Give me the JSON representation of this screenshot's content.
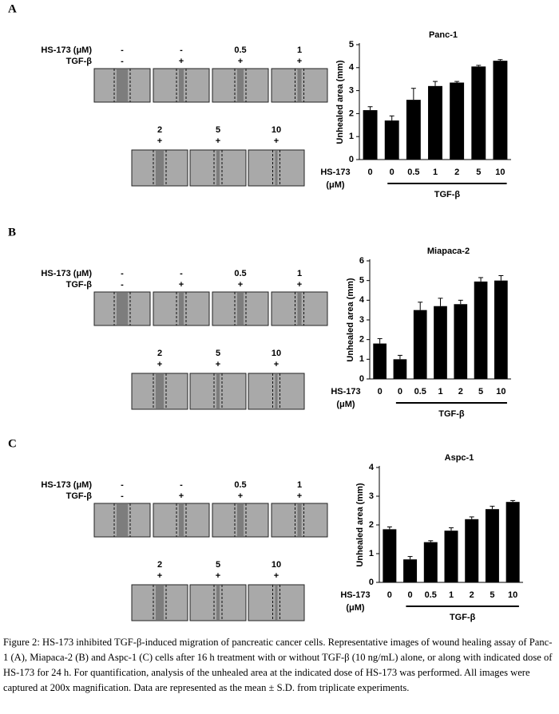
{
  "chart_data": [
    {
      "type": "bar",
      "title": "Panc-1",
      "ylabel": "Unhealed area (mm)",
      "xlabel": [
        "HS-173",
        "(μM)"
      ],
      "group_label": "TGF-β",
      "categories": [
        "0",
        "0",
        "0.5",
        "1",
        "2",
        "5",
        "10"
      ],
      "values": [
        2.15,
        1.7,
        2.6,
        3.2,
        3.35,
        4.05,
        4.3
      ],
      "errors": [
        0.15,
        0.2,
        0.5,
        0.2,
        0.05,
        0.05,
        0.05
      ],
      "color": "#000000",
      "ylim": [
        0,
        5
      ],
      "yticks": [
        0,
        1,
        2,
        3,
        4,
        5
      ]
    },
    {
      "type": "bar",
      "title": "Miapaca-2",
      "ylabel": "Unhealed area (mm)",
      "xlabel": [
        "HS-173",
        "(μM)"
      ],
      "group_label": "TGF-β",
      "categories": [
        "0",
        "0",
        "0.5",
        "1",
        "2",
        "5",
        "10"
      ],
      "values": [
        1.8,
        1.0,
        3.5,
        3.7,
        3.8,
        4.95,
        5.0
      ],
      "errors": [
        0.25,
        0.2,
        0.4,
        0.4,
        0.2,
        0.2,
        0.25
      ],
      "color": "#000000",
      "ylim": [
        0,
        6
      ],
      "yticks": [
        0,
        1,
        2,
        3,
        4,
        5,
        6
      ]
    },
    {
      "type": "bar",
      "title": "Aspc-1",
      "ylabel": "Unhealed area (mm)",
      "xlabel": [
        "HS-173",
        "(μM)"
      ],
      "group_label": "TGF-β",
      "categories": [
        "0",
        "0",
        "0.5",
        "1",
        "2",
        "5",
        "10"
      ],
      "values": [
        1.85,
        0.8,
        1.4,
        1.8,
        2.2,
        2.55,
        2.8
      ],
      "errors": [
        0.08,
        0.1,
        0.05,
        0.1,
        0.08,
        0.1,
        0.05
      ],
      "color": "#000000",
      "ylim": [
        0,
        4
      ],
      "yticks": [
        0,
        1,
        2,
        3,
        4
      ]
    }
  ],
  "panels": [
    {
      "label": "A",
      "hs_label": "HS-173 (μM)",
      "tgf_label": "TGF-β",
      "doses": [
        "-",
        "-",
        "0.5",
        "1",
        "2",
        "5",
        "10"
      ],
      "tgf": [
        "-",
        "+",
        "+",
        "+",
        "+",
        "+",
        "+"
      ]
    },
    {
      "label": "B",
      "hs_label": "HS-173 (μM)",
      "tgf_label": "TGF-β",
      "doses": [
        "-",
        "-",
        "0.5",
        "1",
        "2",
        "5",
        "10"
      ],
      "tgf": [
        "-",
        "+",
        "+",
        "+",
        "+",
        "+",
        "+"
      ]
    },
    {
      "label": "C",
      "hs_label": "HS-173 (μM)",
      "tgf_label": "TGF-β",
      "doses": [
        "-",
        "-",
        "0.5",
        "1",
        "2",
        "5",
        "10"
      ],
      "tgf": [
        "-",
        "+",
        "+",
        "+",
        "+",
        "+",
        "+"
      ]
    }
  ],
  "caption": "Figure 2: HS-173 inhibited TGF-β-induced migration of pancreatic cancer cells. Representative images of wound healing assay of Panc-1 (A), Miapaca-2 (B) and Aspc-1 (C) cells after 16 h treatment with or without TGF-β (10 ng/mL) alone, or along with indicated dose of HS-173 for 24 h. For quantification, analysis of the unhealed area at the indicated dose of HS-173 was performed. All images were captured at 200x magnification. Data are represented as the mean ± S.D. from triplicate experiments."
}
